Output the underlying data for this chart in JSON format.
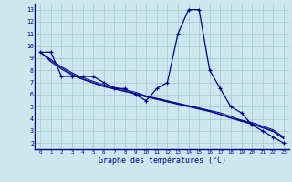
{
  "hours": [
    0,
    1,
    2,
    3,
    4,
    5,
    6,
    7,
    8,
    9,
    10,
    11,
    12,
    13,
    14,
    15,
    16,
    17,
    18,
    19,
    20,
    21,
    22,
    23
  ],
  "temp_main": [
    9.5,
    9.5,
    7.5,
    7.5,
    7.5,
    7.5,
    7.0,
    6.5,
    6.5,
    6.0,
    5.5,
    6.5,
    7.0,
    11.0,
    13.0,
    13.0,
    8.0,
    6.5,
    5.0,
    4.5,
    3.5,
    3.0,
    2.5,
    2.0
  ],
  "regression1": [
    9.5,
    8.9,
    8.3,
    7.8,
    7.4,
    7.1,
    6.8,
    6.6,
    6.4,
    6.2,
    5.9,
    5.7,
    5.5,
    5.3,
    5.1,
    4.9,
    4.7,
    4.5,
    4.2,
    3.9,
    3.7,
    3.4,
    3.1,
    2.5
  ],
  "regression2": [
    9.5,
    8.8,
    8.2,
    7.7,
    7.3,
    7.0,
    6.7,
    6.5,
    6.3,
    6.1,
    5.85,
    5.65,
    5.45,
    5.25,
    5.05,
    4.85,
    4.65,
    4.4,
    4.1,
    3.85,
    3.6,
    3.3,
    3.0,
    2.4
  ],
  "regression3": [
    9.5,
    8.7,
    8.1,
    7.6,
    7.25,
    6.95,
    6.65,
    6.45,
    6.25,
    6.05,
    5.8,
    5.6,
    5.4,
    5.2,
    5.0,
    4.8,
    4.6,
    4.35,
    4.05,
    3.8,
    3.55,
    3.25,
    2.95,
    2.35
  ],
  "bg_color": "#cce8ee",
  "line_color": "#00008b",
  "grid_color": "#a0c8d0",
  "xlabel": "Graphe des températures (°C)",
  "ylim": [
    1.5,
    13.5
  ],
  "xlim": [
    -0.5,
    23.5
  ],
  "yticks": [
    2,
    3,
    4,
    5,
    6,
    7,
    8,
    9,
    10,
    11,
    12,
    13
  ],
  "xticks": [
    0,
    1,
    2,
    3,
    4,
    5,
    6,
    7,
    8,
    9,
    10,
    11,
    12,
    13,
    14,
    15,
    16,
    17,
    18,
    19,
    20,
    21,
    22,
    23
  ]
}
